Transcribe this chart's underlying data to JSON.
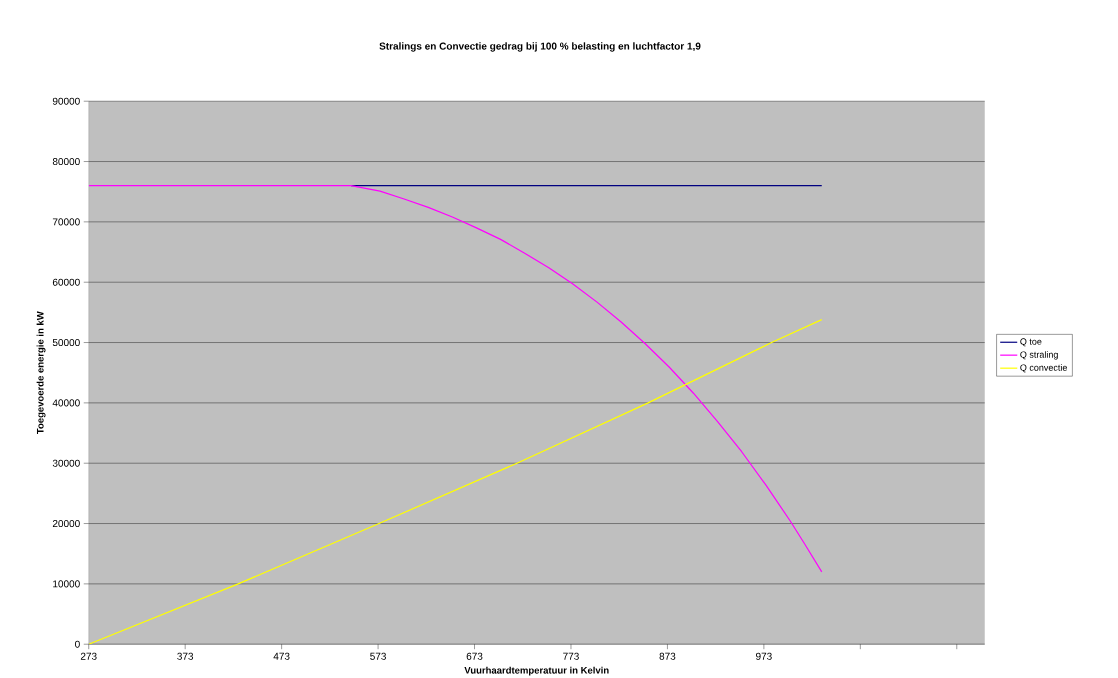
{
  "chart_data": {
    "type": "line",
    "title": "Stralings en Convectie gedrag bij 100 %  belasting en luchtfactor 1,9",
    "xlabel": "Vuurhaardtemperatuur in Kelvin",
    "ylabel": "Toegevoerde energie in kW",
    "xlim": [
      273,
      1202
    ],
    "xticks": [
      273,
      373,
      473,
      573,
      673,
      773,
      873,
      973,
      {
        "value": 1073,
        "label": null
      },
      {
        "value": 1173,
        "label": null
      }
    ],
    "ylim": [
      0,
      90000
    ],
    "yticks": [
      0,
      10000,
      20000,
      30000,
      40000,
      50000,
      60000,
      70000,
      80000,
      90000
    ],
    "grid": "y",
    "legend": "right",
    "marker": "none",
    "line_style": "solid",
    "series": [
      {
        "name": "Q toe",
        "color": "#000080",
        "x": [
          545,
          1033
        ],
        "values": [
          76000,
          76000
        ]
      },
      {
        "name": "Q straling",
        "color": "#ff00ff",
        "x": [
          273,
          545,
          575,
          600,
          625,
          650,
          675,
          700,
          725,
          750,
          775,
          800,
          825,
          850,
          875,
          900,
          925,
          950,
          975,
          1000,
          1015,
          1033
        ],
        "values": [
          76000,
          76000,
          75100,
          73800,
          72400,
          70800,
          69000,
          67100,
          64800,
          62400,
          59700,
          56700,
          53400,
          49800,
          45900,
          41600,
          36900,
          31900,
          26400,
          20500,
          16700,
          12000
        ]
      },
      {
        "name": "Q convectie",
        "color": "#ffff00",
        "x": [
          273,
          428,
          574,
          717,
          853,
          981,
          1033
        ],
        "values": [
          0,
          10000,
          20000,
          30000,
          40000,
          50000,
          53800
        ]
      }
    ]
  }
}
